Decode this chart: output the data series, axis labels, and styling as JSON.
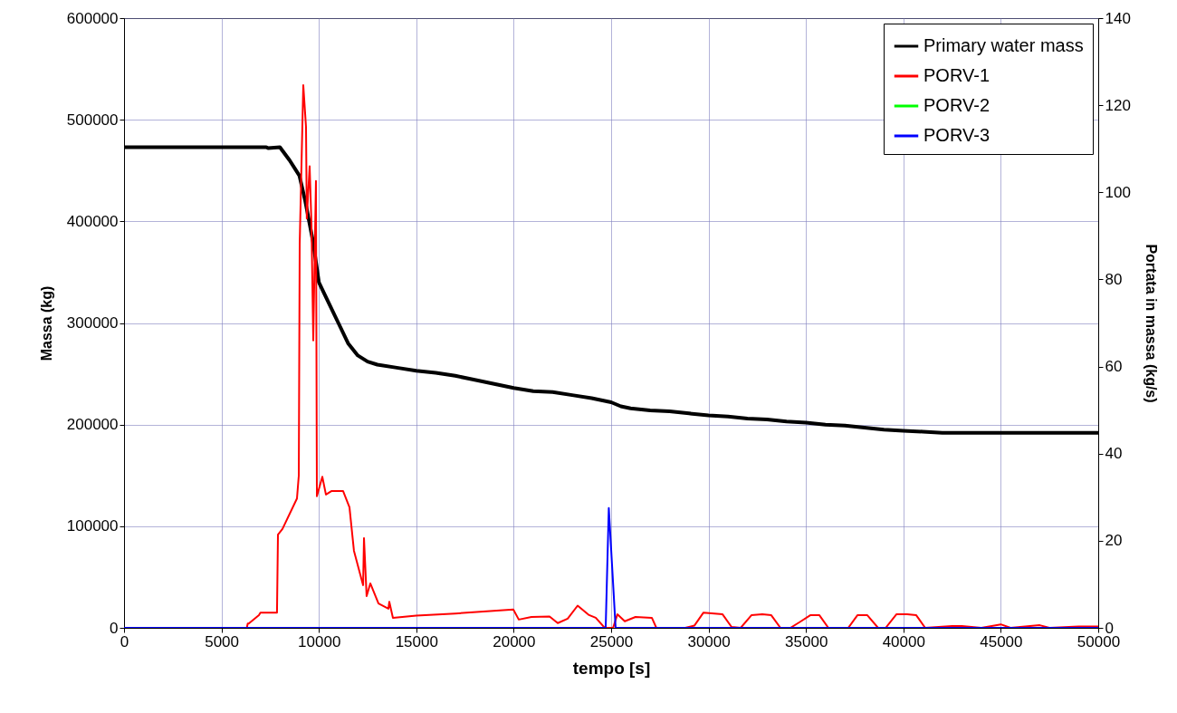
{
  "chart_data": {
    "type": "line",
    "xlabel": "tempo [s]",
    "ylabel": "Massa (kg)",
    "y2label": "Portata in massa (kg/s)",
    "xlim": [
      0,
      50000
    ],
    "xticks": [
      0,
      5000,
      10000,
      15000,
      20000,
      25000,
      30000,
      35000,
      40000,
      45000,
      50000
    ],
    "ylim": [
      0,
      600000
    ],
    "yticks": [
      0,
      100000,
      200000,
      300000,
      400000,
      500000,
      600000
    ],
    "y2lim": [
      0,
      140
    ],
    "y2ticks": [
      0,
      20,
      40,
      60,
      80,
      100,
      120,
      140
    ],
    "grid": true,
    "legend": "top right",
    "line_style": "solid",
    "marker": "none",
    "series": [
      {
        "name": "Primary water mass",
        "color": "#000000",
        "x": [
          0,
          7300,
          7400,
          8000,
          8500,
          9000,
          9300,
          9700,
          10000,
          10500,
          11000,
          11500,
          12000,
          12500,
          13000,
          14000,
          15000,
          16000,
          17000,
          18000,
          19000,
          20000,
          21000,
          22000,
          23000,
          24000,
          25000,
          25500,
          26000,
          27000,
          28000,
          29000,
          30000,
          31000,
          32000,
          33000,
          34000,
          35000,
          36000,
          37000,
          38000,
          39000,
          40000,
          41000,
          42000,
          50000
        ],
        "values": [
          473000,
          473000,
          472000,
          473000,
          460000,
          445000,
          420000,
          380000,
          340000,
          320000,
          300000,
          280000,
          268000,
          262000,
          259000,
          256000,
          253000,
          251000,
          248000,
          244000,
          240000,
          236000,
          233000,
          232000,
          229000,
          226000,
          222000,
          218000,
          216000,
          214000,
          213000,
          211000,
          209000,
          208000,
          206000,
          205000,
          203000,
          202000,
          200000,
          199000,
          197000,
          195000,
          194000,
          193000,
          192000,
          192000
        ]
      },
      {
        "name": "PORV-1",
        "color": "#ff0000",
        "axis": "y2",
        "x": [
          0,
          6300,
          6350,
          6400,
          6924,
          7000,
          7850,
          7900,
          8130,
          8875,
          8970,
          9015,
          9200,
          9340,
          9380,
          9526,
          9620,
          9712,
          9850,
          9898,
          10177,
          10362,
          10641,
          11245,
          11570,
          11800,
          12270,
          12315,
          12450,
          12640,
          13060,
          13570,
          13615,
          13800,
          15000,
          17000,
          19980,
          20260,
          20910,
          21840,
          22260,
          22770,
          23280,
          23840,
          24210,
          24670,
          25100,
          25320,
          25700,
          26250,
          27090,
          27320,
          28800,
          29270,
          29740,
          30720,
          31180,
          31650,
          32200,
          32760,
          33220,
          33690,
          34200,
          34670,
          35220,
          35690,
          36150,
          37170,
          37640,
          38150,
          38700,
          39090,
          39640,
          40190,
          40660,
          41120,
          42500,
          43000,
          44000,
          45000,
          45500,
          47000,
          47500,
          49000,
          50000
        ],
        "values": [
          0,
          0,
          1,
          1,
          2.9,
          3.5,
          3.5,
          21.4,
          22.7,
          29.7,
          35,
          88,
          124.6,
          115,
          94,
          106,
          92.6,
          66,
          102.6,
          30.2,
          34.7,
          30.6,
          31.4,
          31.4,
          27.7,
          17.7,
          9.8,
          20.6,
          7.3,
          10.2,
          5.6,
          4.4,
          6,
          2.3,
          2.8,
          3.3,
          4.2,
          1.9,
          2.5,
          2.6,
          1.1,
          2.1,
          5.1,
          3,
          2.3,
          0,
          0,
          3.1,
          1.5,
          2.5,
          2.3,
          0,
          0,
          0.5,
          3.5,
          3.1,
          0.2,
          0,
          2.9,
          3.1,
          2.9,
          0,
          0,
          1.3,
          2.9,
          2.9,
          0,
          0,
          2.9,
          2.9,
          0,
          0,
          3.1,
          3.1,
          2.9,
          0,
          0.4,
          0.4,
          0,
          0.8,
          0,
          0.6,
          0,
          0.3,
          0.3
        ]
      },
      {
        "name": "PORV-2",
        "color": "#00ff00",
        "axis": "y2"
      },
      {
        "name": "PORV-3",
        "color": "#0000ff",
        "axis": "y2",
        "x": [
          0,
          24720,
          24880,
          25230,
          50000
        ],
        "values": [
          0,
          0,
          27.5,
          0,
          0
        ]
      }
    ]
  }
}
